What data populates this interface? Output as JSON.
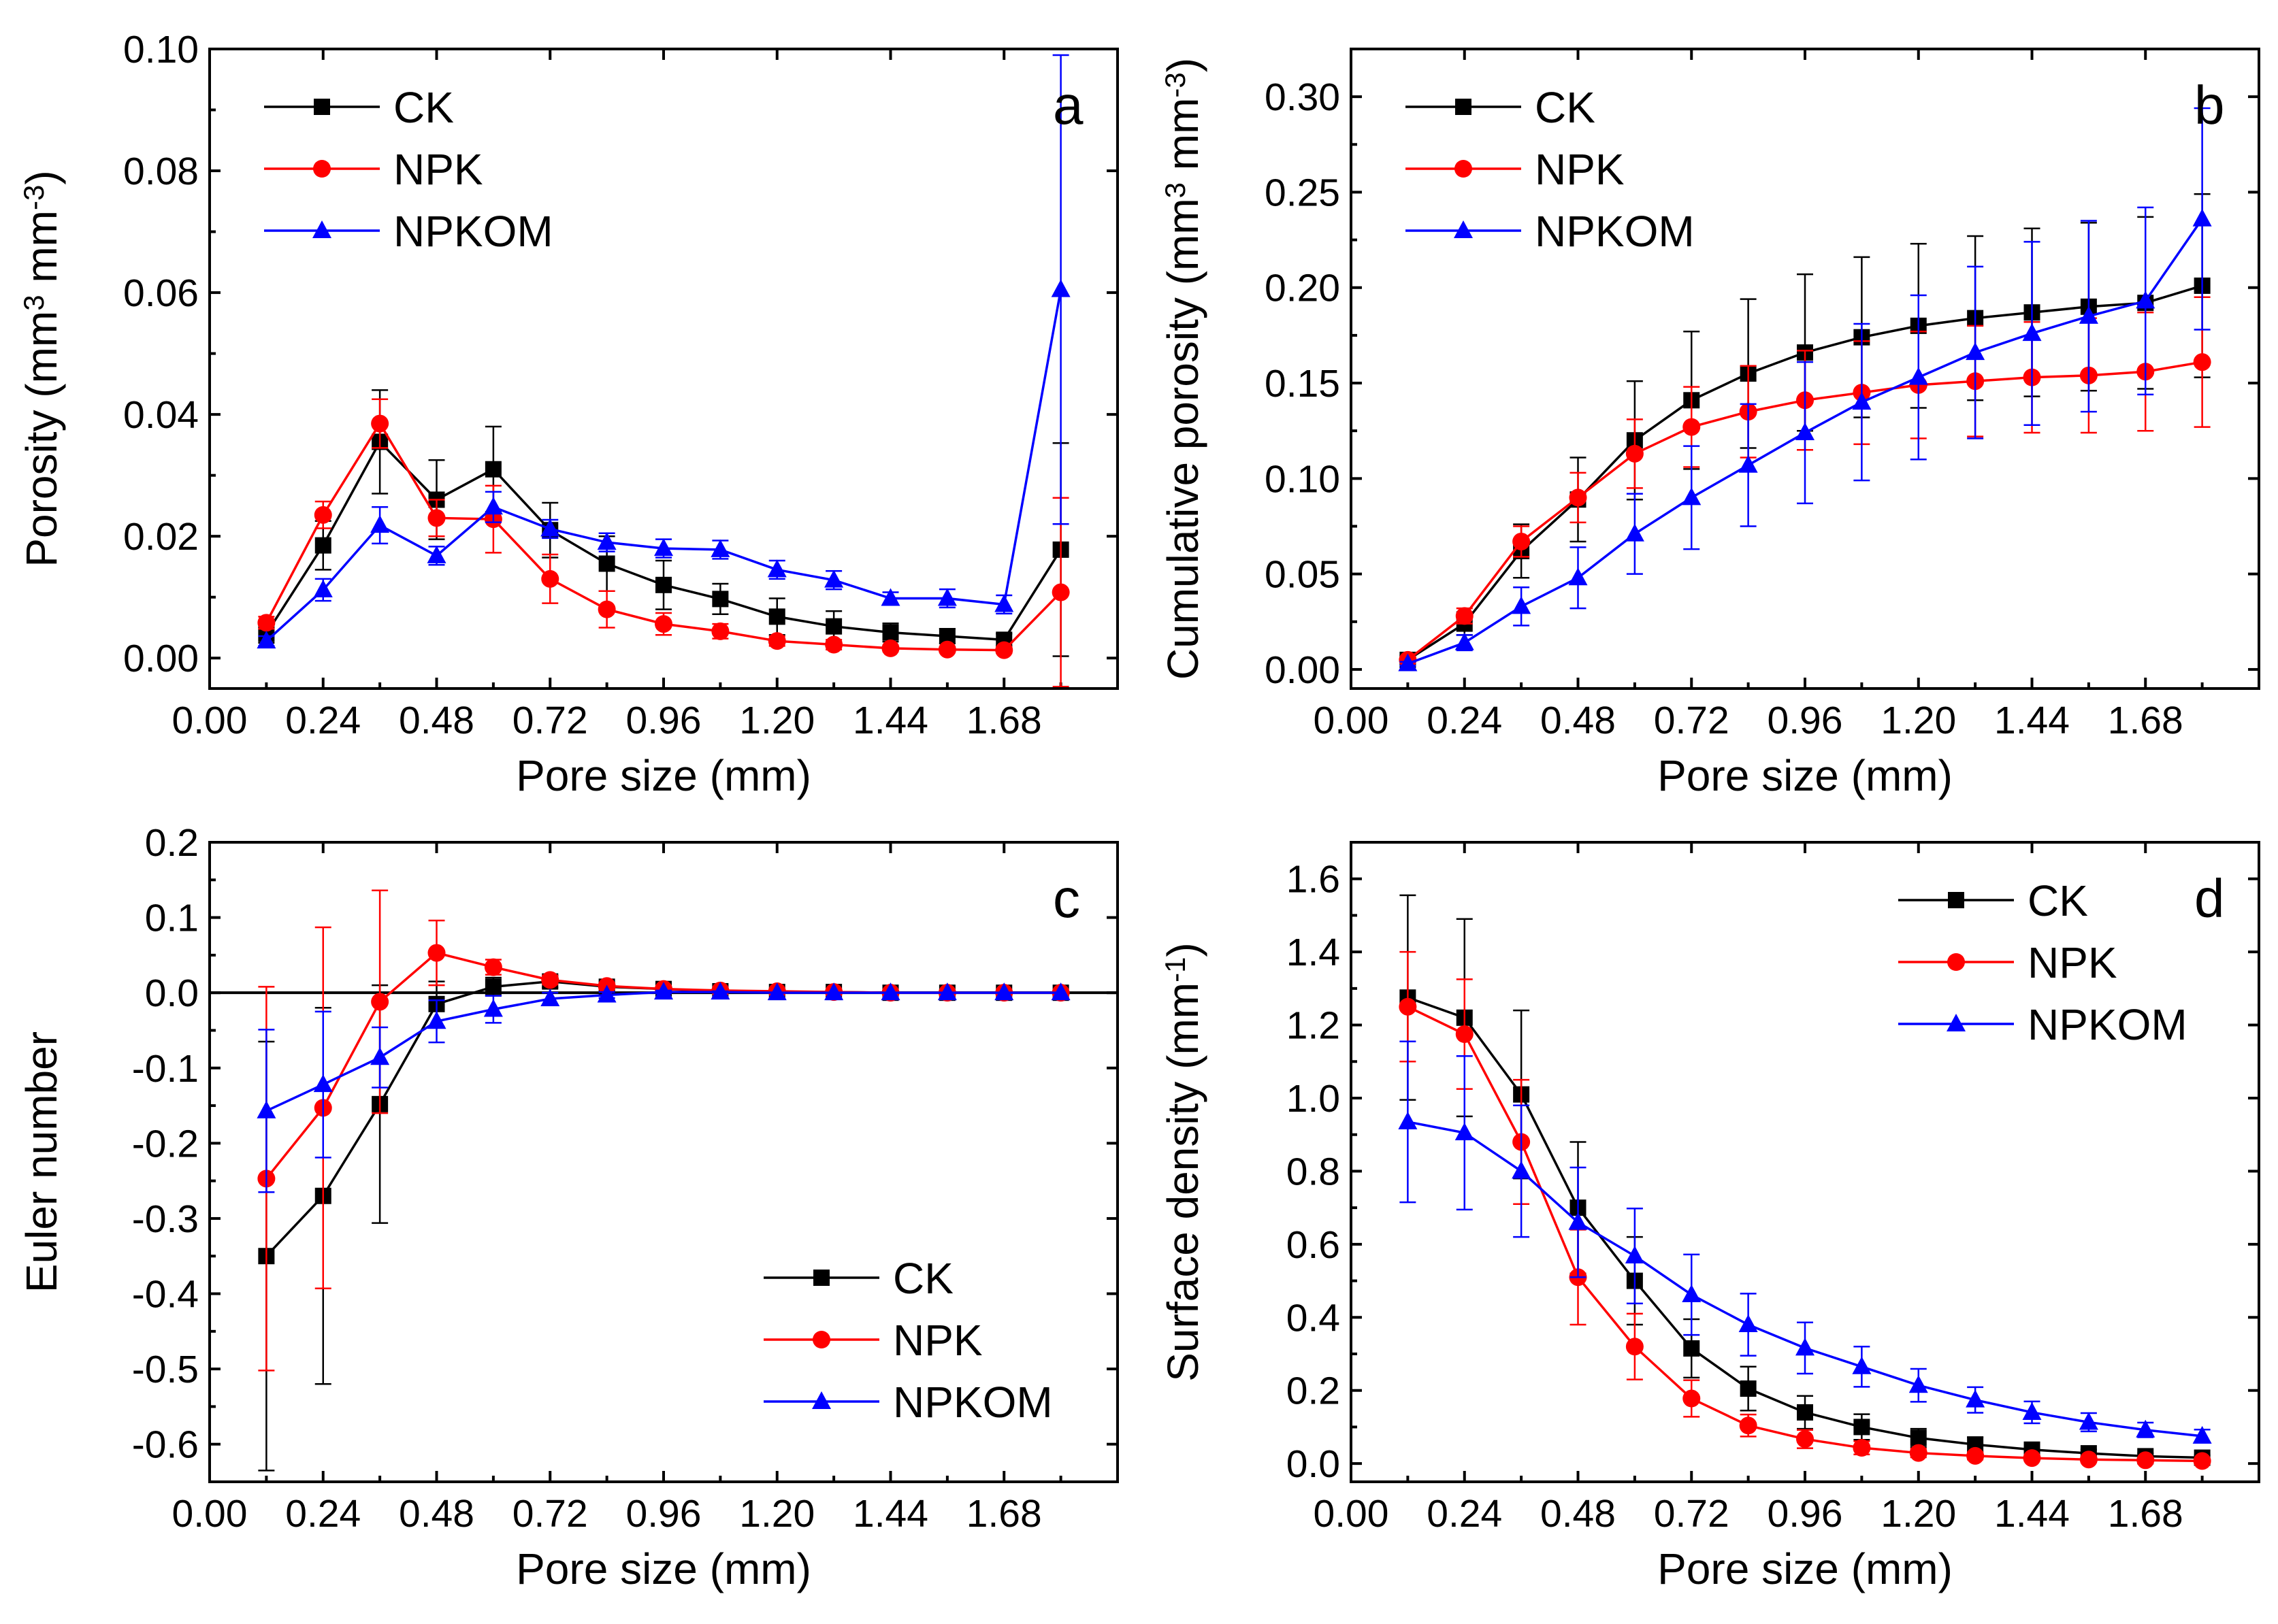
{
  "figure": {
    "panels_layout": "2x2"
  },
  "colors": {
    "CK": "#000000",
    "NPK": "#ff0000",
    "NPKOM": "#0000ff"
  },
  "chart_data": [
    {
      "id": "a",
      "type": "line",
      "panel_label": "a",
      "title": "",
      "xlabel": "Pore size (mm)",
      "ylabel_main": "Porosity (mm",
      "ylabel_sup1": "3",
      "ylabel_mid": " mm",
      "ylabel_sup2": "-3",
      "ylabel_end": ")",
      "xlim": [
        0,
        1.92
      ],
      "ylim": [
        -0.005,
        0.1
      ],
      "xticks": [
        0,
        0.24,
        0.48,
        0.72,
        0.96,
        1.2,
        1.44,
        1.68
      ],
      "xtick_labels": [
        "0.00",
        "0.24",
        "0.48",
        "0.72",
        "0.96",
        "1.20",
        "1.44",
        "1.68"
      ],
      "yticks": [
        0,
        0.02,
        0.04,
        0.06,
        0.08,
        0.1
      ],
      "ytick_labels": [
        "0.00",
        "0.02",
        "0.04",
        "0.06",
        "0.08",
        "0.10"
      ],
      "legend": {
        "position": "top-left",
        "entries": [
          "CK",
          "NPK",
          "NPKOM"
        ]
      },
      "x": [
        0.12,
        0.24,
        0.36,
        0.48,
        0.6,
        0.72,
        0.84,
        0.96,
        1.08,
        1.2,
        1.32,
        1.44,
        1.56,
        1.68,
        1.8
      ],
      "series": [
        {
          "name": "CK",
          "marker": "square",
          "values": [
            0.004,
            0.0185,
            0.0355,
            0.026,
            0.031,
            0.021,
            0.0155,
            0.012,
            0.0097,
            0.0068,
            0.0052,
            0.0042,
            0.0036,
            0.003,
            0.0178
          ],
          "errors": [
            0.0015,
            0.004,
            0.0085,
            0.0065,
            0.007,
            0.0045,
            0.0045,
            0.004,
            0.0025,
            0.003,
            0.0025,
            0.0015,
            0.0012,
            0.001,
            0.0175
          ]
        },
        {
          "name": "NPK",
          "marker": "circle",
          "values": [
            0.0058,
            0.0235,
            0.0385,
            0.023,
            0.0228,
            0.013,
            0.008,
            0.0056,
            0.0044,
            0.0028,
            0.0022,
            0.0016,
            0.0014,
            0.0013,
            0.0108
          ],
          "errors": [
            0.001,
            0.0022,
            0.004,
            0.003,
            0.0055,
            0.004,
            0.003,
            0.0018,
            0.0012,
            0.0008,
            0.0008,
            0.0005,
            0.0005,
            0.0005,
            0.0155
          ]
        },
        {
          "name": "NPKOM",
          "marker": "triangle",
          "values": [
            0.0028,
            0.0112,
            0.0218,
            0.0168,
            0.0248,
            0.0212,
            0.019,
            0.018,
            0.0178,
            0.0145,
            0.0128,
            0.0098,
            0.0098,
            0.0088,
            0.0605
          ],
          "errors": [
            0.0008,
            0.0018,
            0.003,
            0.0015,
            0.0025,
            0.0015,
            0.0015,
            0.0015,
            0.0015,
            0.0015,
            0.0015,
            0.001,
            0.0015,
            0.0015,
            0.0385
          ]
        }
      ]
    },
    {
      "id": "b",
      "type": "line",
      "panel_label": "b",
      "title": "",
      "xlabel": "Pore size (mm)",
      "ylabel_main": "Cumulative porosity (mm",
      "ylabel_sup1": "3",
      "ylabel_mid": " mm",
      "ylabel_sup2": "-3",
      "ylabel_end": ")",
      "xlim": [
        0,
        1.92
      ],
      "ylim": [
        -0.01,
        0.325
      ],
      "xticks": [
        0,
        0.24,
        0.48,
        0.72,
        0.96,
        1.2,
        1.44,
        1.68
      ],
      "xtick_labels": [
        "0.00",
        "0.24",
        "0.48",
        "0.72",
        "0.96",
        "1.20",
        "1.44",
        "1.68"
      ],
      "yticks": [
        0,
        0.05,
        0.1,
        0.15,
        0.2,
        0.25,
        0.3
      ],
      "ytick_labels": [
        "0.00",
        "0.05",
        "0.10",
        "0.15",
        "0.20",
        "0.25",
        "0.30"
      ],
      "legend": {
        "position": "top-left",
        "entries": [
          "CK",
          "NPK",
          "NPKOM"
        ]
      },
      "x": [
        0.12,
        0.24,
        0.36,
        0.48,
        0.6,
        0.72,
        0.84,
        0.96,
        1.08,
        1.2,
        1.32,
        1.44,
        1.56,
        1.68,
        1.8
      ],
      "series": [
        {
          "name": "CK",
          "marker": "square",
          "values": [
            0.005,
            0.024,
            0.062,
            0.089,
            0.12,
            0.141,
            0.155,
            0.166,
            0.174,
            0.18,
            0.184,
            0.187,
            0.19,
            0.192,
            0.201
          ],
          "errors": [
            0.002,
            0.006,
            0.014,
            0.022,
            0.031,
            0.036,
            0.039,
            0.041,
            0.042,
            0.043,
            0.043,
            0.044,
            0.044,
            0.045,
            0.048
          ]
        },
        {
          "name": "NPK",
          "marker": "circle",
          "values": [
            0.005,
            0.028,
            0.067,
            0.09,
            0.113,
            0.127,
            0.135,
            0.141,
            0.145,
            0.149,
            0.151,
            0.153,
            0.154,
            0.156,
            0.161
          ],
          "errors": [
            0.001,
            0.004,
            0.008,
            0.013,
            0.018,
            0.021,
            0.024,
            0.026,
            0.027,
            0.028,
            0.029,
            0.029,
            0.03,
            0.031,
            0.034
          ]
        },
        {
          "name": "NPKOM",
          "marker": "triangle",
          "values": [
            0.003,
            0.014,
            0.033,
            0.048,
            0.071,
            0.09,
            0.107,
            0.124,
            0.14,
            0.153,
            0.166,
            0.176,
            0.185,
            0.193,
            0.236
          ],
          "errors": [
            0.001,
            0.004,
            0.01,
            0.016,
            0.021,
            0.027,
            0.032,
            0.037,
            0.041,
            0.043,
            0.045,
            0.048,
            0.05,
            0.049,
            0.058
          ]
        }
      ]
    },
    {
      "id": "c",
      "type": "line",
      "panel_label": "c",
      "title": "",
      "xlabel": "Pore size (mm)",
      "ylabel_main": "Euler number",
      "ylabel_sup1": "",
      "ylabel_mid": "",
      "ylabel_sup2": "",
      "ylabel_end": "",
      "xlim": [
        0,
        1.92
      ],
      "ylim": [
        -0.65,
        0.2
      ],
      "xticks": [
        0,
        0.24,
        0.48,
        0.72,
        0.96,
        1.2,
        1.44,
        1.68
      ],
      "xtick_labels": [
        "0.00",
        "0.24",
        "0.48",
        "0.72",
        "0.96",
        "1.20",
        "1.44",
        "1.68"
      ],
      "yticks": [
        -0.6,
        -0.5,
        -0.4,
        -0.3,
        -0.2,
        -0.1,
        0,
        0.1,
        0.2
      ],
      "ytick_labels": [
        "-0.6",
        "-0.5",
        "-0.4",
        "-0.3",
        "-0.2",
        "-0.1",
        "0.0",
        "0.1",
        "0.2"
      ],
      "zero_line": true,
      "legend": {
        "position": "bottom-right",
        "entries": [
          "CK",
          "NPK",
          "NPKOM"
        ]
      },
      "x": [
        0.12,
        0.24,
        0.36,
        0.48,
        0.6,
        0.72,
        0.84,
        0.96,
        1.08,
        1.2,
        1.32,
        1.44,
        1.56,
        1.68,
        1.8
      ],
      "series": [
        {
          "name": "CK",
          "marker": "square",
          "values": [
            -0.35,
            -0.27,
            -0.148,
            -0.015,
            0.008,
            0.015,
            0.008,
            0.005,
            0.002,
            0.001,
            0.001,
            0.0,
            0.0,
            0.0,
            0.0
          ],
          "errors": [
            0.285,
            0.25,
            0.158,
            0.03,
            0.012,
            0.008,
            0.006,
            0.004,
            0.002,
            0.001,
            0.001,
            0.0,
            0.0,
            0.0,
            0.0
          ]
        },
        {
          "name": "NPK",
          "marker": "circle",
          "values": [
            -0.247,
            -0.153,
            -0.012,
            0.053,
            0.034,
            0.017,
            0.009,
            0.005,
            0.003,
            0.002,
            0.001,
            0.0,
            0.0,
            0.0,
            0.0
          ],
          "errors": [
            0.255,
            0.24,
            0.148,
            0.043,
            0.01,
            0.006,
            0.004,
            0.003,
            0.002,
            0.001,
            0.001,
            0.0,
            0.0,
            0.0,
            0.0
          ]
        },
        {
          "name": "NPKOM",
          "marker": "triangle",
          "values": [
            -0.157,
            -0.122,
            -0.086,
            -0.038,
            -0.022,
            -0.008,
            -0.003,
            0.001,
            0.001,
            0.0,
            0.0,
            0.0,
            0.0,
            0.0,
            0.0
          ],
          "errors": [
            0.108,
            0.097,
            0.04,
            0.028,
            0.018,
            0.008,
            0.004,
            0.002,
            0.001,
            0.0,
            0.0,
            0.0,
            0.0,
            0.0,
            0.0
          ]
        }
      ]
    },
    {
      "id": "d",
      "type": "line",
      "panel_label": "d",
      "title": "",
      "xlabel": "Pore size (mm)",
      "ylabel_main": "Surface density (mm",
      "ylabel_sup1": "-1",
      "ylabel_mid": ")",
      "ylabel_sup2": "",
      "ylabel_end": "",
      "xlim": [
        0,
        1.92
      ],
      "ylim": [
        -0.05,
        1.7
      ],
      "xticks": [
        0,
        0.24,
        0.48,
        0.72,
        0.96,
        1.2,
        1.44,
        1.68
      ],
      "xtick_labels": [
        "0.00",
        "0.24",
        "0.48",
        "0.72",
        "0.96",
        "1.20",
        "1.44",
        "1.68"
      ],
      "yticks": [
        0,
        0.2,
        0.4,
        0.6,
        0.8,
        1.0,
        1.2,
        1.4,
        1.6
      ],
      "ytick_labels": [
        "0.0",
        "0.2",
        "0.4",
        "0.6",
        "0.8",
        "1.0",
        "1.2",
        "1.4",
        "1.6"
      ],
      "legend": {
        "position": "top-right",
        "entries": [
          "CK",
          "NPK",
          "NPKOM"
        ]
      },
      "x": [
        0.12,
        0.24,
        0.36,
        0.48,
        0.6,
        0.72,
        0.84,
        0.96,
        1.08,
        1.2,
        1.32,
        1.44,
        1.56,
        1.68,
        1.8
      ],
      "series": [
        {
          "name": "CK",
          "marker": "square",
          "values": [
            1.275,
            1.22,
            1.01,
            0.7,
            0.5,
            0.315,
            0.205,
            0.14,
            0.1,
            0.07,
            0.052,
            0.038,
            0.028,
            0.02,
            0.016
          ],
          "errors": [
            0.28,
            0.27,
            0.23,
            0.18,
            0.12,
            0.08,
            0.06,
            0.045,
            0.035,
            0.025,
            0.02,
            0.015,
            0.01,
            0.008,
            0.007
          ]
        },
        {
          "name": "NPK",
          "marker": "circle",
          "values": [
            1.25,
            1.175,
            0.88,
            0.51,
            0.32,
            0.178,
            0.104,
            0.067,
            0.043,
            0.029,
            0.021,
            0.015,
            0.011,
            0.009,
            0.007
          ],
          "errors": [
            0.15,
            0.15,
            0.17,
            0.13,
            0.09,
            0.05,
            0.03,
            0.025,
            0.018,
            0.012,
            0.01,
            0.007,
            0.005,
            0.004,
            0.003
          ]
        },
        {
          "name": "NPKOM",
          "marker": "triangle",
          "values": [
            0.935,
            0.905,
            0.8,
            0.66,
            0.568,
            0.462,
            0.38,
            0.316,
            0.265,
            0.214,
            0.174,
            0.14,
            0.113,
            0.092,
            0.075
          ],
          "errors": [
            0.22,
            0.21,
            0.18,
            0.15,
            0.13,
            0.11,
            0.085,
            0.07,
            0.055,
            0.045,
            0.035,
            0.03,
            0.025,
            0.02,
            0.018
          ]
        }
      ]
    }
  ]
}
